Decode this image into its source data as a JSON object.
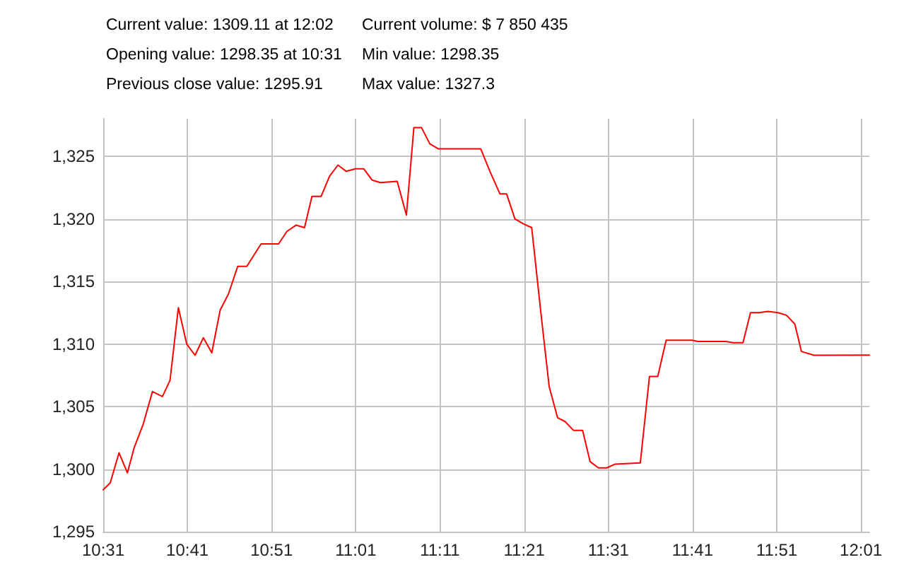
{
  "chart_data": {
    "type": "line",
    "annotations": [
      "Current value: 1309.11 at 12:02",
      "Current volume: $ 7 850 435",
      "Opening value: 1298.35 at 10:31",
      "Min value: 1298.35",
      "Previous close value: 1295.91",
      "Max value: 1327.3"
    ],
    "x": [
      10.5167,
      10.5307,
      10.548,
      10.5647,
      10.5779,
      10.596,
      10.6142,
      10.634,
      10.649,
      10.6655,
      10.682,
      10.6985,
      10.715,
      10.7317,
      10.7482,
      10.7647,
      10.7829,
      10.801,
      10.8292,
      10.8639,
      10.8804,
      10.8987,
      10.9152,
      10.93,
      10.9482,
      10.9647,
      10.9814,
      10.9979,
      11.016,
      11.0325,
      11.049,
      11.0655,
      11.0987,
      11.1169,
      11.1317,
      11.1467,
      11.1632,
      11.1797,
      11.264,
      11.2822,
      11.302,
      11.3152,
      11.3317,
      11.3484,
      11.3649,
      11.3847,
      11.3995,
      11.4162,
      11.431,
      11.4475,
      11.4657,
      11.4805,
      11.497,
      11.5137,
      11.5302,
      11.5799,
      11.598,
      11.6145,
      11.631,
      11.6824,
      11.6939,
      11.75,
      11.7634,
      11.7832,
      11.798,
      11.8145,
      11.8327,
      11.8525,
      11.8692,
      11.8857,
      11.8989,
      11.9237,
      12.0333
    ],
    "series": [
      {
        "color": "#ff0000",
        "values": [
          1298.35,
          1298.9,
          1301.3,
          1299.7,
          1301.7,
          1303.6,
          1306.2,
          1305.8,
          1307.1,
          1312.9,
          1310.0,
          1309.1,
          1310.5,
          1309.3,
          1312.7,
          1314.0,
          1316.2,
          1316.2,
          1318.0,
          1318.0,
          1319.0,
          1319.5,
          1319.3,
          1321.8,
          1321.8,
          1323.4,
          1324.3,
          1323.8,
          1324.0,
          1324.0,
          1323.1,
          1322.9,
          1323.0,
          1320.3,
          1327.3,
          1327.3,
          1326.0,
          1325.6,
          1325.6,
          1323.8,
          1322.0,
          1322.0,
          1320.0,
          1319.6,
          1319.3,
          1311.9,
          1306.6,
          1304.1,
          1303.8,
          1303.1,
          1303.1,
          1300.6,
          1300.1,
          1300.1,
          1300.4,
          1300.5,
          1307.4,
          1307.4,
          1310.3,
          1310.3,
          1310.2,
          1310.2,
          1310.1,
          1310.1,
          1312.5,
          1312.5,
          1312.6,
          1312.5,
          1312.3,
          1311.6,
          1309.4,
          1309.1,
          1309.11
        ]
      }
    ],
    "xlim": [
      10.5167,
      12.0333
    ],
    "xticks": [
      {
        "value": 10.5167,
        "label": "10:31"
      },
      {
        "value": 10.6833,
        "label": "10:41"
      },
      {
        "value": 10.85,
        "label": "10:51"
      },
      {
        "value": 11.0167,
        "label": "11:01"
      },
      {
        "value": 11.1833,
        "label": "11:11"
      },
      {
        "value": 11.35,
        "label": "11:21"
      },
      {
        "value": 11.5167,
        "label": "11:31"
      },
      {
        "value": 11.6833,
        "label": "11:41"
      },
      {
        "value": 11.85,
        "label": "11:51"
      },
      {
        "value": 12.0167,
        "label": "12:01"
      }
    ],
    "ylim": [
      1295,
      1328
    ],
    "yticks": [
      {
        "value": 1295,
        "label": "1,295"
      },
      {
        "value": 1300,
        "label": "1,300"
      },
      {
        "value": 1305,
        "label": "1,305"
      },
      {
        "value": 1310,
        "label": "1,310"
      },
      {
        "value": 1315,
        "label": "1,315"
      },
      {
        "value": 1320,
        "label": "1,320"
      },
      {
        "value": 1325,
        "label": "1,325"
      }
    ],
    "grid": true,
    "marker": "none",
    "line_style": "solid"
  }
}
